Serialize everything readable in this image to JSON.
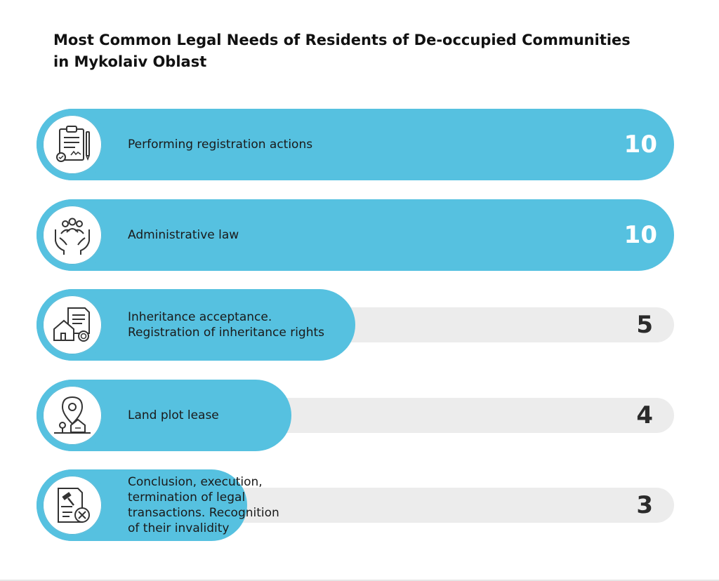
{
  "title_lines": [
    "Most Common Legal Needs of Residents of De-occupied Communities",
    "in Mykolaiv Oblast"
  ],
  "colors": {
    "bar": "#56c1e0",
    "track": "#ececec",
    "value_on_bar": "#ffffff",
    "value_on_track": "#2b2b2b"
  },
  "chart_data": {
    "type": "bar",
    "orientation": "horizontal",
    "title": "Most Common Legal Needs of Residents of De-occupied Communities in Mykolaiv Oblast",
    "xlim": [
      0,
      10
    ],
    "categories": [
      "Performing registration actions",
      "Administrative law",
      "Inheritance acceptance. Registration of inheritance rights",
      "Land plot lease",
      "Conclusion, execution, termination of legal transactions. Recognition of their invalidity"
    ],
    "values": [
      10,
      10,
      5,
      4,
      3
    ],
    "rows": [
      {
        "label_lines": [
          "Performing registration actions"
        ],
        "value": 10,
        "icon": "clipboard-document-icon"
      },
      {
        "label_lines": [
          "Administrative law"
        ],
        "value": 10,
        "icon": "people-in-hands-icon"
      },
      {
        "label_lines": [
          "Inheritance acceptance.",
          "Registration of inheritance rights"
        ],
        "value": 5,
        "icon": "house-document-seal-icon"
      },
      {
        "label_lines": [
          "Land plot lease"
        ],
        "value": 4,
        "icon": "location-pin-house-icon"
      },
      {
        "label_lines": [
          "Conclusion, execution,",
          "termination of legal",
          "transactions. Recognition",
          "of their invalidity"
        ],
        "value": 3,
        "icon": "gavel-document-cancel-icon"
      }
    ]
  }
}
